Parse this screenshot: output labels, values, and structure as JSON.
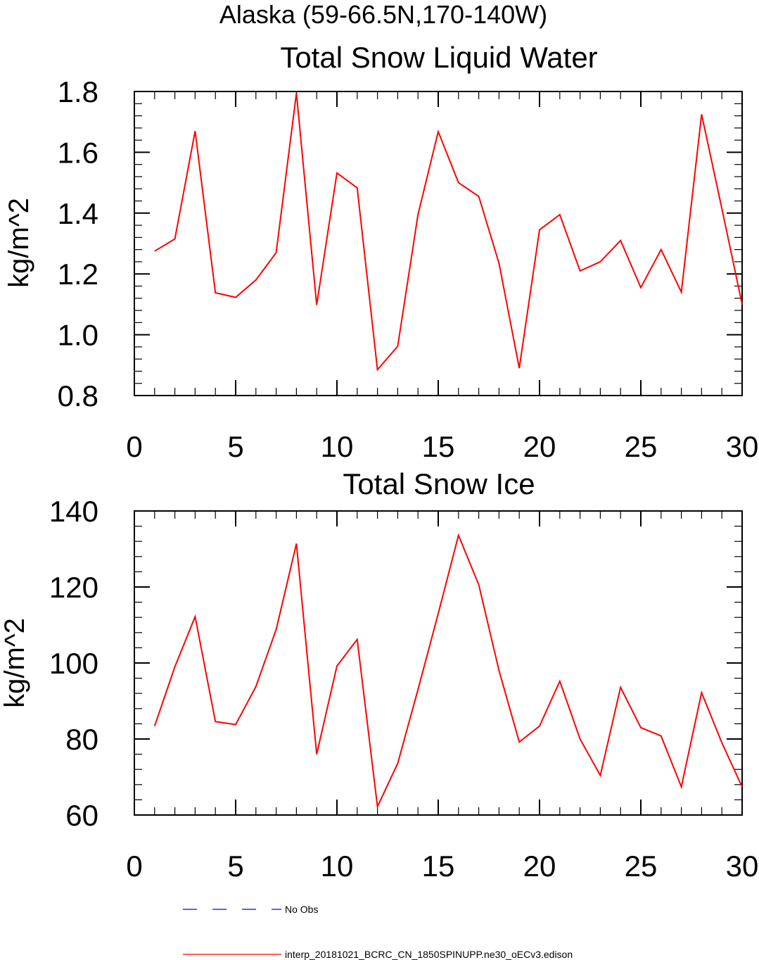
{
  "figure": {
    "suptitle": "Alaska (59-66.5N,170-140W)",
    "line_color": "#ff0000",
    "obs_color": "#0000ff",
    "axis_color": "#000000"
  },
  "legend": {
    "obs_label": "No Obs",
    "model_label": "interp_20181021_BCRC_CN_1850SPINUPP.ne30_oECv3.edison"
  },
  "chart_data": [
    {
      "type": "line",
      "title": "Total Snow Liquid Water",
      "xlabel": "",
      "ylabel": "kg/m^2",
      "xlim": [
        0,
        30
      ],
      "ylim": [
        0.8,
        1.8
      ],
      "xticks": [
        0,
        5,
        10,
        15,
        20,
        25,
        30
      ],
      "xtick_labels": [
        "0",
        "5",
        "10",
        "15",
        "20",
        "25",
        "30"
      ],
      "yticks": [
        0.8,
        1.0,
        1.2,
        1.4,
        1.6,
        1.8
      ],
      "ytick_labels": [
        "0.8",
        "1.0",
        "1.2",
        "1.4",
        "1.6",
        "1.8"
      ],
      "x_minor_step": 1,
      "y_minor_step": 0.04,
      "series": [
        {
          "name": "interp_20181021_BCRC_CN_1850SPINUPP.ne30_oECv3.edison",
          "x": [
            1,
            2,
            3,
            4,
            5,
            6,
            7,
            8,
            9,
            10,
            11,
            12,
            13,
            14,
            15,
            16,
            17,
            18,
            19,
            20,
            21,
            22,
            23,
            24,
            25,
            26,
            27,
            28,
            29,
            30
          ],
          "values": [
            1.275,
            1.315,
            1.67,
            1.138,
            1.123,
            1.18,
            1.27,
            1.795,
            1.098,
            1.532,
            1.483,
            0.885,
            0.962,
            1.395,
            1.668,
            1.5,
            1.455,
            1.235,
            0.89,
            1.345,
            1.395,
            1.21,
            1.24,
            1.31,
            1.155,
            1.28,
            1.14,
            1.725,
            1.415,
            1.1
          ]
        }
      ]
    },
    {
      "type": "line",
      "title": "Total Snow Ice",
      "xlabel": "",
      "ylabel": "kg/m^2",
      "xlim": [
        0,
        30
      ],
      "ylim": [
        60,
        140
      ],
      "xticks": [
        0,
        5,
        10,
        15,
        20,
        25,
        30
      ],
      "xtick_labels": [
        "0",
        "5",
        "10",
        "15",
        "20",
        "25",
        "30"
      ],
      "yticks": [
        60,
        80,
        100,
        120,
        140
      ],
      "ytick_labels": [
        "60",
        "80",
        "100",
        "120",
        "140"
      ],
      "x_minor_step": 1,
      "y_minor_step": 4,
      "series": [
        {
          "name": "interp_20181021_BCRC_CN_1850SPINUPP.ne30_oECv3.edison",
          "x": [
            1,
            2,
            3,
            4,
            5,
            6,
            7,
            8,
            9,
            10,
            11,
            12,
            13,
            14,
            15,
            16,
            17,
            18,
            19,
            20,
            21,
            22,
            23,
            24,
            25,
            26,
            27,
            28,
            29,
            30
          ],
          "values": [
            83.4,
            99,
            112.2,
            84.6,
            83.8,
            93.8,
            108.8,
            131.4,
            76,
            99.2,
            106.2,
            62.2,
            73.6,
            93,
            113,
            133.6,
            120.6,
            98,
            79.2,
            83.4,
            95.2,
            80,
            70.4,
            93.6,
            83,
            80.8,
            67.4,
            92.2,
            79,
            67.4
          ]
        }
      ]
    }
  ]
}
